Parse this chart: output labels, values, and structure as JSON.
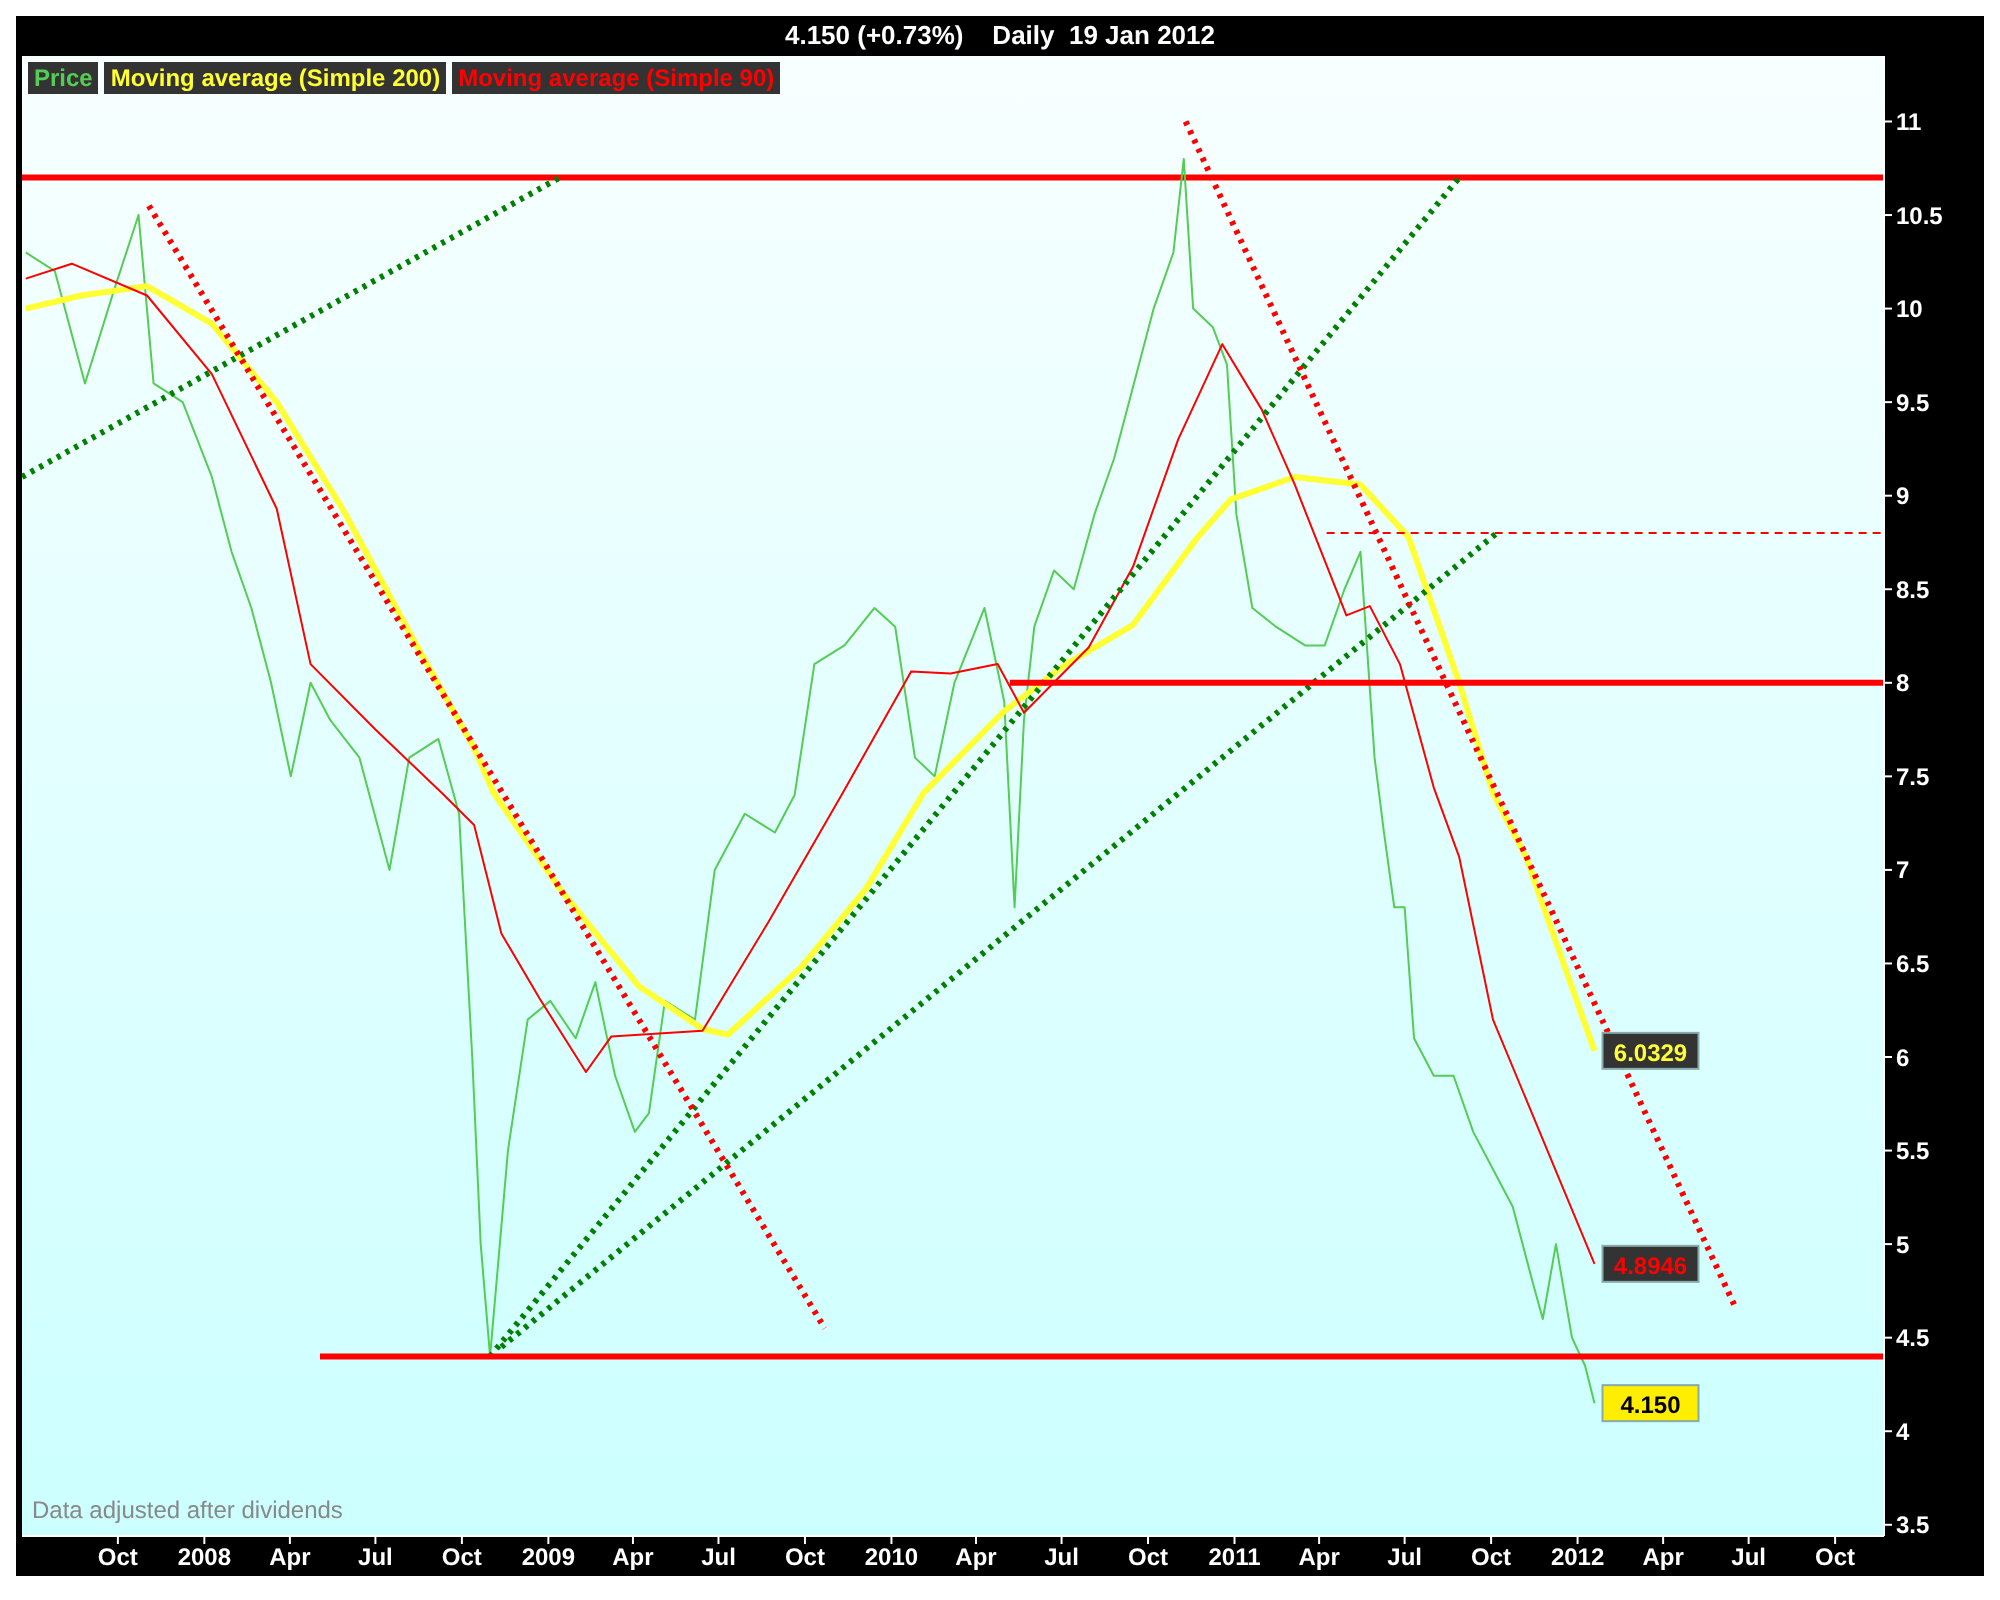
{
  "chart_data": {
    "type": "line",
    "title": "4.150 (+0.73%)    Daily  19 Jan 2012",
    "annotations": [
      "Data adjusted after dividends"
    ],
    "legend": "top left",
    "marker": "none",
    "xlim": [
      "2007-06-21",
      "2012-11-22"
    ],
    "xticks": [
      {
        "value": "2007-10-01",
        "label": "Oct"
      },
      {
        "value": "2008-01-01",
        "label": "2008"
      },
      {
        "value": "2008-04-01",
        "label": "Apr"
      },
      {
        "value": "2008-07-01",
        "label": "Jul"
      },
      {
        "value": "2008-10-01",
        "label": "Oct"
      },
      {
        "value": "2009-01-01",
        "label": "2009"
      },
      {
        "value": "2009-04-01",
        "label": "Apr"
      },
      {
        "value": "2009-07-01",
        "label": "Jul"
      },
      {
        "value": "2009-10-01",
        "label": "Oct"
      },
      {
        "value": "2010-01-01",
        "label": "2010"
      },
      {
        "value": "2010-04-01",
        "label": "Apr"
      },
      {
        "value": "2010-07-01",
        "label": "Jul"
      },
      {
        "value": "2010-10-01",
        "label": "Oct"
      },
      {
        "value": "2011-01-01",
        "label": "2011"
      },
      {
        "value": "2011-04-01",
        "label": "Apr"
      },
      {
        "value": "2011-07-01",
        "label": "Jul"
      },
      {
        "value": "2011-10-01",
        "label": "Oct"
      },
      {
        "value": "2012-01-01",
        "label": "2012"
      },
      {
        "value": "2012-04-01",
        "label": "Apr"
      },
      {
        "value": "2012-07-01",
        "label": "Jul"
      },
      {
        "value": "2012-10-01",
        "label": "Oct"
      }
    ],
    "ylim": [
      3.44,
      11.35
    ],
    "yticks": [
      3.5,
      4,
      4.5,
      5,
      5.5,
      6,
      6.5,
      7,
      7.5,
      8,
      8.5,
      9,
      9.5,
      10,
      10.5,
      11
    ],
    "ref_lines": [
      {
        "axis": "y",
        "value": 10.7,
        "color": "#ff0000",
        "line_style": "solid"
      }
    ],
    "series": [
      {
        "name": "Price",
        "color": "#55cc55",
        "line_style": "solid",
        "x": [
          "2007-06-25",
          "2007-07-26",
          "2007-08-27",
          "2007-09-27",
          "2007-10-23",
          "2007-11-08",
          "2007-12-09",
          "2008-01-09",
          "2008-01-30",
          "2008-02-20",
          "2008-03-12",
          "2008-04-02",
          "2008-04-23",
          "2008-05-14",
          "2008-06-14",
          "2008-07-16",
          "2008-08-06",
          "2008-09-06",
          "2008-09-28",
          "2008-10-12",
          "2008-10-21",
          "2008-10-31",
          "2008-11-19",
          "2008-12-10",
          "2009-01-03",
          "2009-01-30",
          "2009-02-20",
          "2009-03-13",
          "2009-04-03",
          "2009-04-18",
          "2009-05-05",
          "2009-06-06",
          "2009-06-27",
          "2009-07-29",
          "2009-08-30",
          "2009-09-20",
          "2009-10-11",
          "2009-11-12",
          "2009-12-14",
          "2010-01-05",
          "2010-01-26",
          "2010-02-16",
          "2010-03-09",
          "2010-04-10",
          "2010-05-01",
          "2010-05-12",
          "2010-05-22",
          "2010-06-02",
          "2010-06-23",
          "2010-07-14",
          "2010-08-05",
          "2010-08-26",
          "2010-09-16",
          "2010-10-07",
          "2010-10-28",
          "2010-11-08",
          "2010-11-18",
          "2010-12-09",
          "2010-12-24",
          "2011-01-03",
          "2011-01-20",
          "2011-02-14",
          "2011-03-17",
          "2011-04-07",
          "2011-04-28",
          "2011-05-15",
          "2011-05-30",
          "2011-06-09",
          "2011-06-20",
          "2011-07-01",
          "2011-07-11",
          "2011-08-01",
          "2011-08-22",
          "2011-09-12",
          "2011-10-03",
          "2011-10-24",
          "2011-11-14",
          "2011-11-25",
          "2011-12-09",
          "2011-12-26",
          "2012-01-09",
          "2012-01-19"
        ],
        "values": [
          10.3,
          10.2,
          9.6,
          10.1,
          10.5,
          9.6,
          9.5,
          9.1,
          8.7,
          8.4,
          8.0,
          7.5,
          8.0,
          7.8,
          7.6,
          7.0,
          7.6,
          7.7,
          7.3,
          6.0,
          5.0,
          4.4,
          5.5,
          6.2,
          6.3,
          6.1,
          6.4,
          5.9,
          5.6,
          5.7,
          6.3,
          6.2,
          7.0,
          7.3,
          7.2,
          7.4,
          8.1,
          8.2,
          8.4,
          8.3,
          7.6,
          7.5,
          8.0,
          8.4,
          7.9,
          6.8,
          7.8,
          8.3,
          8.6,
          8.5,
          8.9,
          9.2,
          9.6,
          10.0,
          10.3,
          10.8,
          10.0,
          9.9,
          9.7,
          8.9,
          8.4,
          8.3,
          8.2,
          8.2,
          8.5,
          8.7,
          7.6,
          7.2,
          6.8,
          6.8,
          6.1,
          5.9,
          5.9,
          5.6,
          5.4,
          5.2,
          4.8,
          4.6,
          5.0,
          4.5,
          4.35,
          4.15
        ],
        "value_labels": [
          null,
          null,
          null,
          null,
          null,
          null,
          null,
          null,
          null,
          null,
          null,
          null,
          null,
          null,
          null,
          null,
          null,
          null,
          null,
          null,
          null,
          null,
          null,
          null,
          null,
          null,
          null,
          null,
          null,
          null,
          null,
          null,
          null,
          null,
          null,
          null,
          null,
          null,
          null,
          null,
          null,
          null,
          null,
          null,
          null,
          null,
          null,
          null,
          null,
          null,
          null,
          null,
          null,
          null,
          null,
          null,
          null,
          null,
          null,
          null,
          null,
          null,
          null,
          null,
          null,
          null,
          null,
          null,
          null,
          null,
          null,
          null,
          null,
          null,
          null,
          null,
          null,
          null,
          null,
          null,
          null,
          "4.150"
        ]
      },
      {
        "name": "Moving average (Simple 200)",
        "color": "#ffff33",
        "line_style": "solid",
        "x": [
          "2007-06-25",
          "2007-08-23",
          "2007-11-01",
          "2008-01-09",
          "2008-03-18",
          "2008-05-27",
          "2008-08-06",
          "2008-10-14",
          "2008-11-04",
          "2009-01-13",
          "2009-04-07",
          "2009-06-14",
          "2009-07-11",
          "2009-09-27",
          "2009-12-05",
          "2010-02-04",
          "2010-04-29",
          "2010-07-06",
          "2010-09-15",
          "2010-11-23",
          "2010-12-28",
          "2011-03-06",
          "2011-05-15",
          "2011-07-05",
          "2011-08-28",
          "2011-10-03",
          "2011-11-07",
          "2012-01-19"
        ],
        "values": [
          10.0,
          10.07,
          10.12,
          9.92,
          9.5,
          8.93,
          8.27,
          7.65,
          7.41,
          6.9,
          6.38,
          6.15,
          6.12,
          6.48,
          6.9,
          7.41,
          7.84,
          8.1,
          8.31,
          8.78,
          8.98,
          9.1,
          9.06,
          8.78,
          8.0,
          7.41,
          7.07,
          6.0329
        ],
        "value_labels": [
          null,
          null,
          null,
          null,
          null,
          null,
          null,
          null,
          null,
          null,
          null,
          null,
          null,
          null,
          null,
          null,
          null,
          null,
          null,
          null,
          null,
          null,
          null,
          null,
          null,
          null,
          null,
          "6.0329"
        ]
      },
      {
        "name": "Moving average (Simple 90)",
        "color": "#ff0000",
        "line_style": "solid",
        "x": [
          "2007-06-25",
          "2007-08-13",
          "2007-11-01",
          "2008-01-09",
          "2008-03-18",
          "2008-04-23",
          "2008-07-01",
          "2008-09-10",
          "2008-10-14",
          "2008-11-12",
          "2008-12-23",
          "2009-02-10",
          "2009-03-09",
          "2009-06-14",
          "2009-08-23",
          "2009-11-10",
          "2010-01-22",
          "2010-03-05",
          "2010-04-24",
          "2010-05-22",
          "2010-07-30",
          "2010-09-15",
          "2010-11-02",
          "2010-12-19",
          "2011-01-30",
          "2011-03-06",
          "2011-04-30",
          "2011-05-25",
          "2011-06-26",
          "2011-08-01",
          "2011-08-28",
          "2011-10-03",
          "2011-11-20",
          "2012-01-19"
        ],
        "values": [
          10.16,
          10.24,
          10.07,
          9.65,
          8.93,
          8.1,
          7.75,
          7.41,
          7.24,
          6.66,
          6.31,
          5.92,
          6.11,
          6.14,
          6.72,
          7.41,
          8.06,
          8.05,
          8.1,
          7.84,
          8.19,
          8.62,
          9.3,
          9.81,
          9.46,
          9.06,
          8.36,
          8.41,
          8.1,
          7.44,
          7.07,
          6.2,
          5.62,
          4.8946
        ],
        "value_labels": [
          null,
          null,
          null,
          null,
          null,
          null,
          null,
          null,
          null,
          null,
          null,
          null,
          null,
          null,
          null,
          null,
          null,
          null,
          null,
          null,
          null,
          null,
          null,
          null,
          null,
          null,
          null,
          null,
          null,
          null,
          null,
          null,
          null,
          "4.8946"
        ]
      },
      {
        "color": "#008000",
        "line_style": "dotted",
        "x": [
          "2007-06-21",
          "2009-01-13"
        ],
        "values": [
          9.1,
          10.7
        ]
      },
      {
        "color": "#008000",
        "line_style": "dotted",
        "x": [
          "2008-10-31",
          "2011-08-28"
        ],
        "values": [
          4.4,
          10.7
        ]
      },
      {
        "color": "#008000",
        "line_style": "dotted",
        "x": [
          "2008-11-12",
          "2011-10-07"
        ],
        "values": [
          4.45,
          8.8
        ]
      },
      {
        "color": "#ff0000",
        "line_style": "dotted",
        "x": [
          "2007-11-03",
          "2009-10-22"
        ],
        "values": [
          10.55,
          4.55
        ]
      },
      {
        "color": "#ff0000",
        "line_style": "dotted",
        "x": [
          "2010-11-10",
          "2012-06-18"
        ],
        "values": [
          11.0,
          4.65
        ]
      },
      {
        "color": "#ff0000",
        "line_style": "solid",
        "x": [
          "2010-05-07",
          "2012-11-22"
        ],
        "values": [
          8.0,
          8.0
        ]
      },
      {
        "color": "#ff0000",
        "line_style": "solid",
        "x": [
          "2008-05-03",
          "2012-11-22"
        ],
        "values": [
          4.4,
          4.4
        ]
      },
      {
        "color": "#ff0000",
        "line_style": "dashed",
        "x": [
          "2011-04-09",
          "2012-11-22"
        ],
        "values": [
          8.8,
          8.8
        ]
      }
    ]
  }
}
